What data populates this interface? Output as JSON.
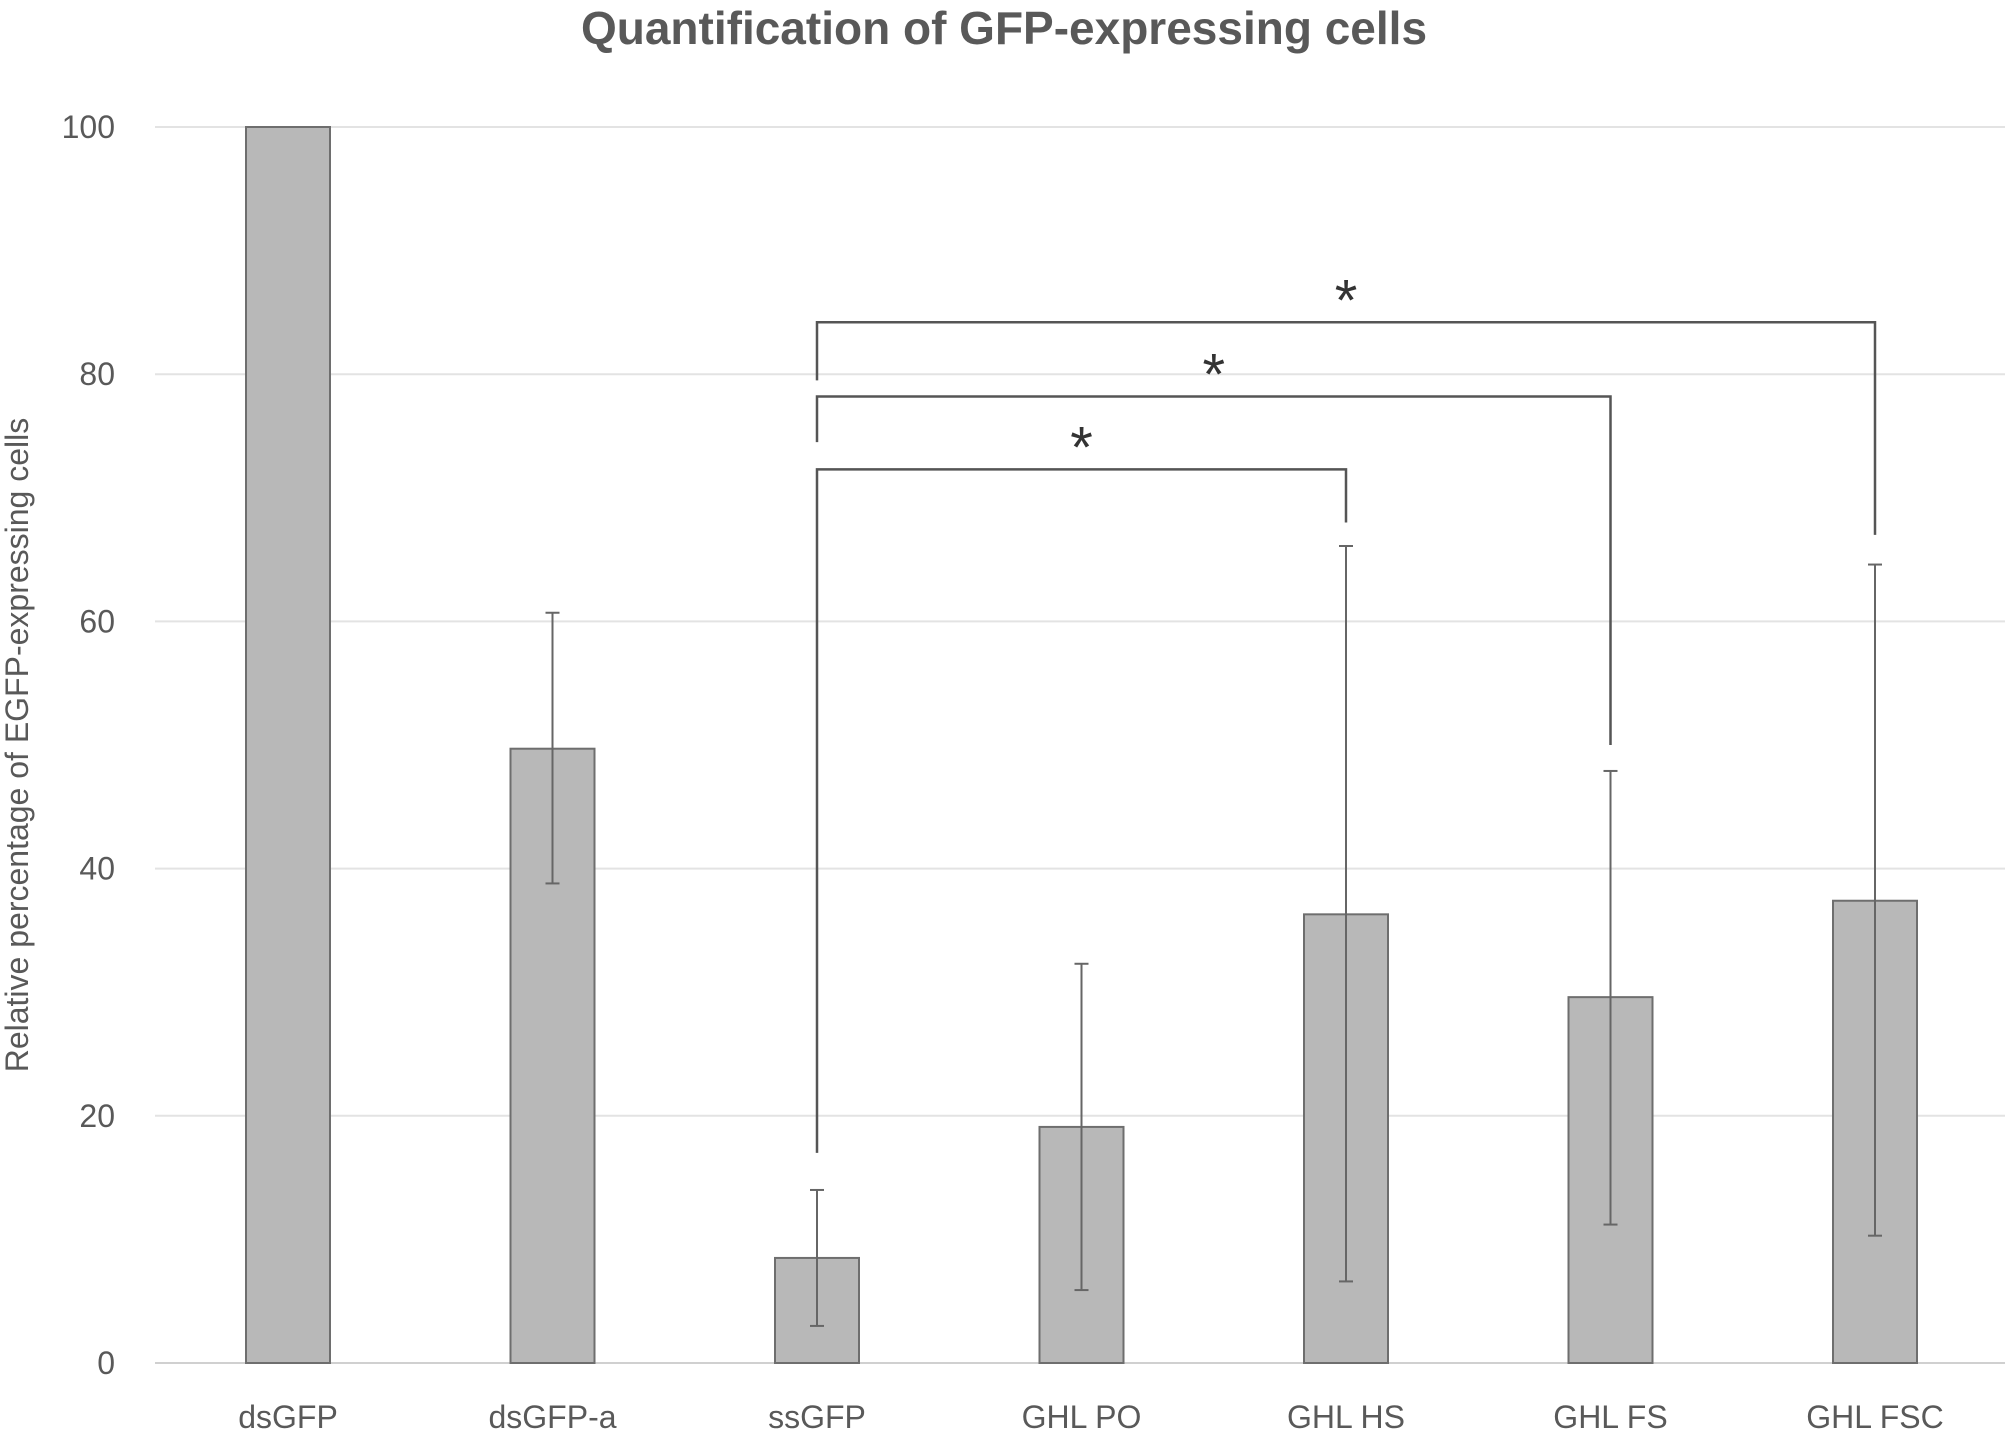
{
  "chart_data": {
    "type": "bar",
    "title": "Quantification of GFP-expressing cells",
    "xlabel": "",
    "ylabel": "Relative percentage of EGFP-expressing cells",
    "ylim": [
      0,
      100
    ],
    "yticks": [
      0,
      20,
      40,
      60,
      80,
      100
    ],
    "grid": true,
    "categories": [
      "dsGFP",
      "dsGFP-a",
      "ssGFP",
      "GHL PO",
      "GHL HS",
      "GHL FS",
      "GHL FSC"
    ],
    "values": [
      100,
      49.7,
      8.5,
      19.1,
      36.3,
      29.6,
      37.4
    ],
    "error_low": [
      null,
      38.8,
      3.0,
      5.9,
      6.6,
      11.2,
      10.3
    ],
    "error_high": [
      null,
      60.7,
      14.0,
      32.3,
      66.1,
      47.9,
      64.6
    ],
    "bar_color": "#b8b8b8",
    "bar_edge_color": "#6e6e6e",
    "significance": [
      {
        "from": "ssGFP",
        "to": "GHL HS",
        "label": "*",
        "level": 72.3,
        "drop_to": 68.0,
        "from_drop_to": 17.0
      },
      {
        "from": "ssGFP",
        "to": "GHL FS",
        "label": "*",
        "level": 78.2,
        "drop_to": 50.0,
        "from_drop_to": 74.5
      },
      {
        "from": "ssGFP",
        "to": "GHL FSC",
        "label": "*",
        "level": 84.2,
        "drop_to": 67.0,
        "from_drop_to": 79.5
      }
    ]
  }
}
